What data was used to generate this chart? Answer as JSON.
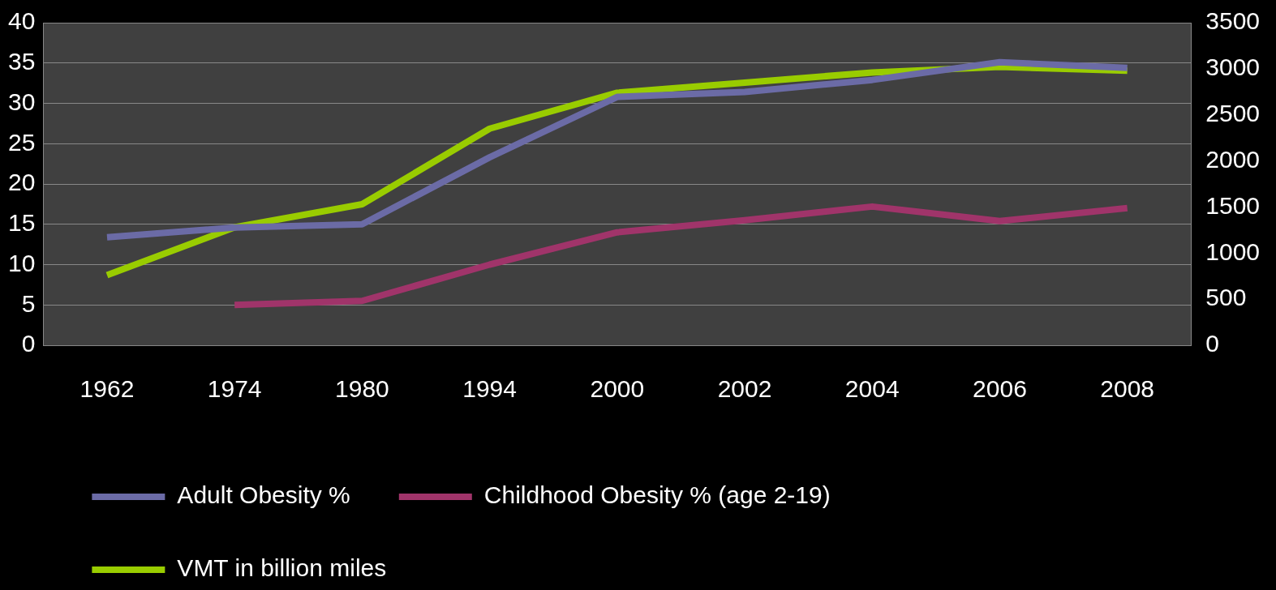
{
  "chart_data": {
    "type": "line",
    "categories": [
      "1962",
      "1974",
      "1980",
      "1994",
      "2000",
      "2002",
      "2004",
      "2006",
      "2008"
    ],
    "series": [
      {
        "name": "Adult Obesity %",
        "color": "#6b6ba6",
        "values": [
          13.4,
          14.6,
          15.0,
          23.3,
          30.8,
          31.4,
          32.9,
          35.1,
          34.4
        ]
      },
      {
        "name": "Childhood Obesity % (age 2-19)",
        "color": "#a0346a",
        "values": [
          null,
          5.0,
          5.5,
          10.0,
          14.0,
          15.5,
          17.2,
          15.4,
          17.0
        ]
      },
      {
        "name": "VMT in billion miles",
        "color": "#99cc00",
        "axis": "y2",
        "values": [
          760,
          1280,
          1530,
          2350,
          2740,
          2850,
          2960,
          3020,
          2980
        ]
      }
    ],
    "ylim": [
      0,
      40
    ],
    "yticks": [
      0,
      5,
      10,
      15,
      20,
      25,
      30,
      35,
      40
    ],
    "y2lim": [
      0,
      3500
    ],
    "y2ticks": [
      0,
      500,
      1000,
      1500,
      2000,
      2500,
      3000,
      3500
    ],
    "grid": "y",
    "legend": "bottom",
    "marker": "none",
    "line_style": "solid"
  }
}
